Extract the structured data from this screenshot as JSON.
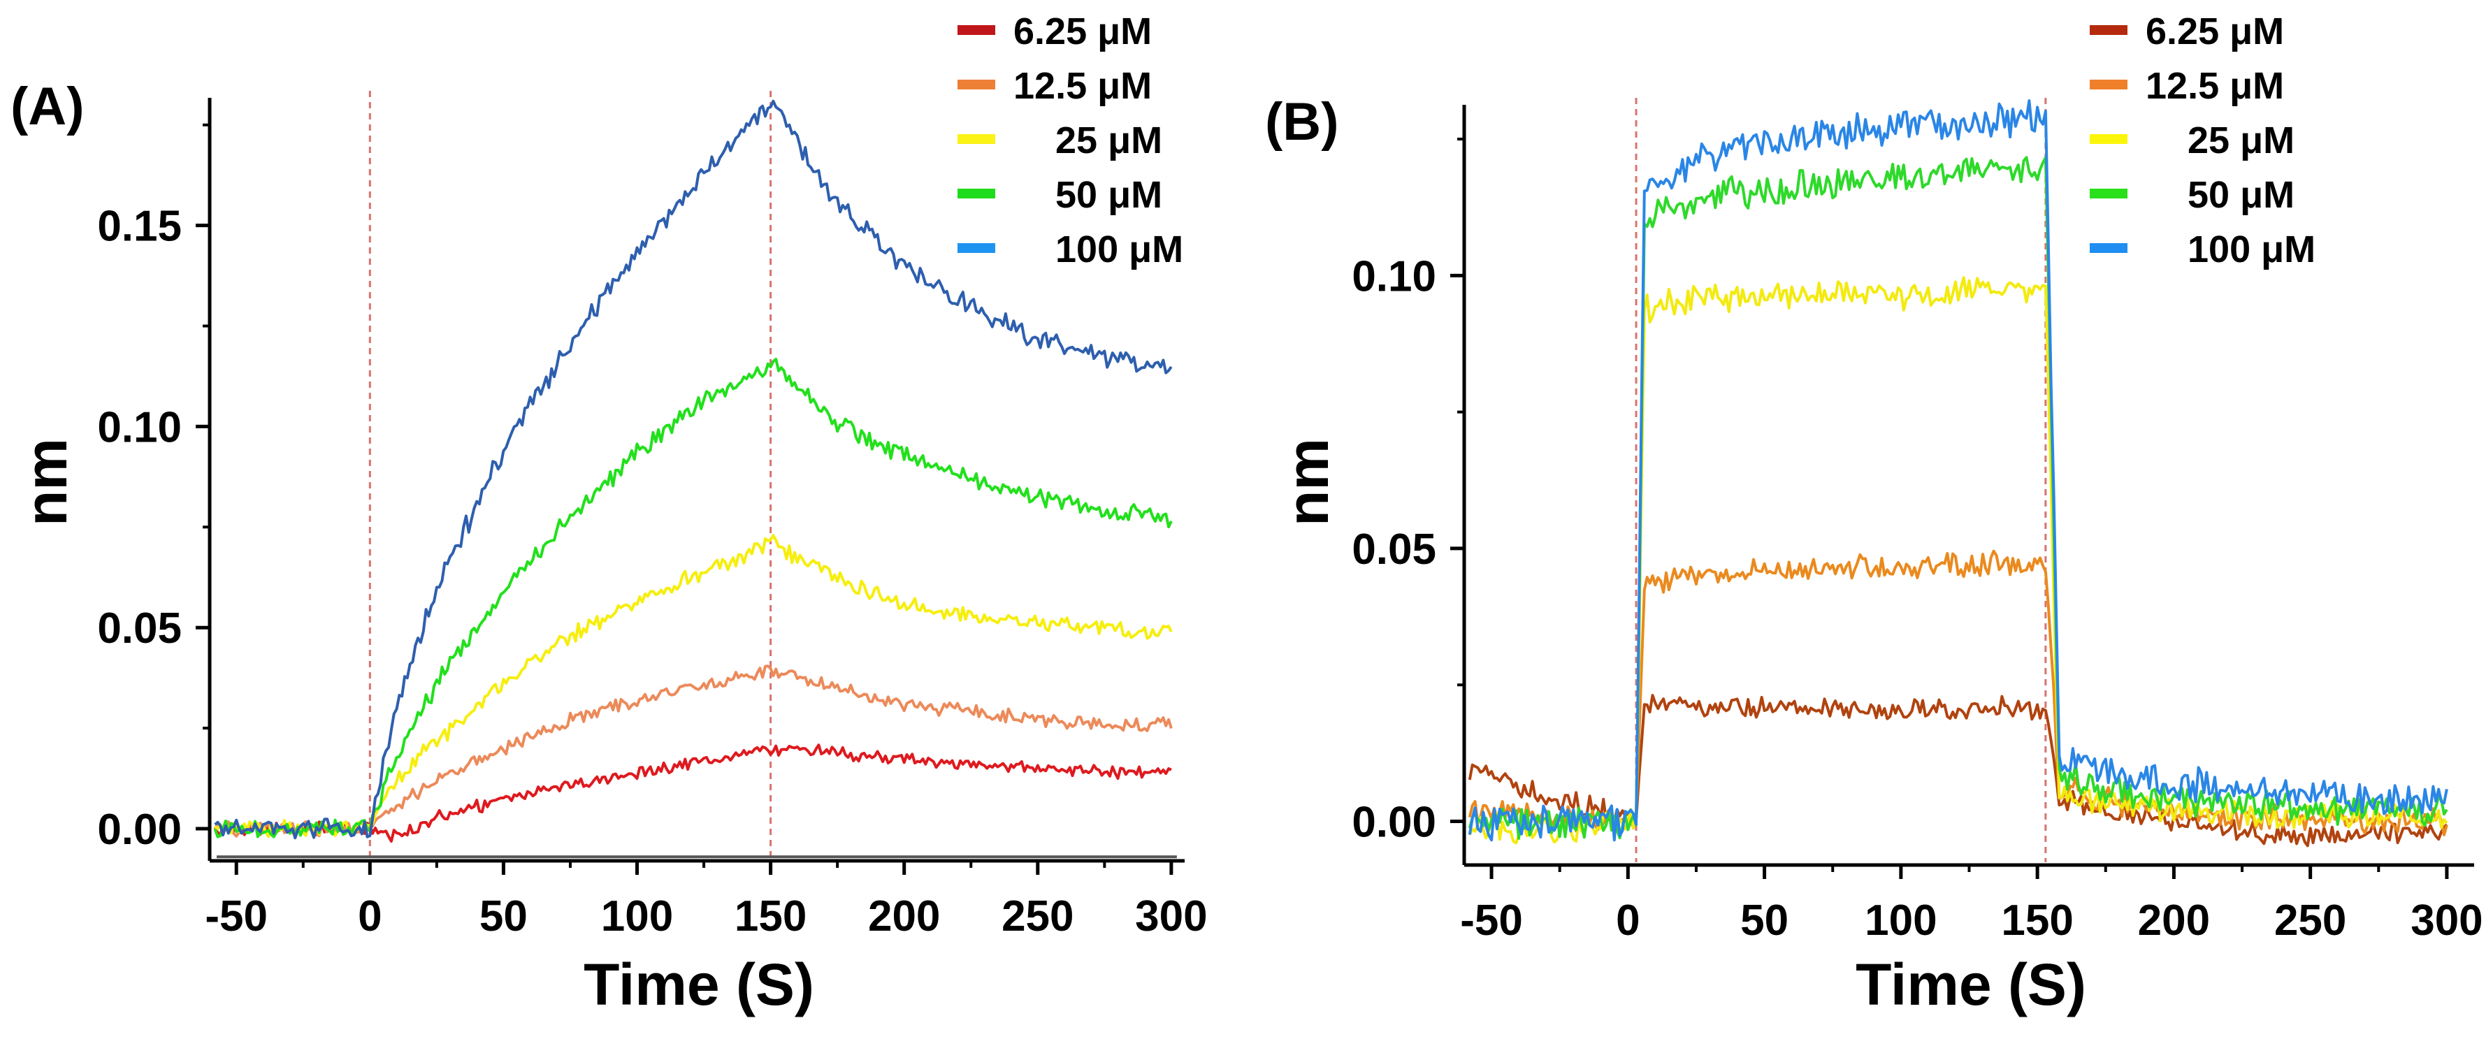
{
  "chart_data": [
    {
      "panel": "(A)",
      "type": "line",
      "xlabel": "Time (S)",
      "ylabel": "nm",
      "xlim": [
        -60,
        305
      ],
      "ylim": [
        -0.008,
        0.18
      ],
      "xticks": [
        -50,
        0,
        50,
        100,
        150,
        200,
        250,
        300
      ],
      "xtick_labels": [
        "-50",
        "0",
        "50",
        "100",
        "150",
        "200",
        "250",
        "300"
      ],
      "yticks": [
        0.0,
        0.05,
        0.1,
        0.15
      ],
      "ytick_labels": [
        "0.00",
        "0.05",
        "0.10",
        "0.15"
      ],
      "baseline_y": -0.007,
      "vlines": [
        0,
        150
      ],
      "legend": "top-right",
      "series": [
        {
          "name": "6.25 μM",
          "legend_color": "#c0161b",
          "line_color": "#de1a1f",
          "x": [
            -60,
            -50,
            -25,
            0,
            10,
            25,
            50,
            75,
            100,
            125,
            150,
            175,
            200,
            225,
            250,
            275,
            300
          ],
          "y": [
            0.0,
            0.0,
            0.0,
            0.0,
            -0.002,
            0.003,
            0.007,
            0.011,
            0.014,
            0.017,
            0.02,
            0.019,
            0.017,
            0.016,
            0.015,
            0.014,
            0.014
          ]
        },
        {
          "name": "12.5 μM",
          "legend_color": "#ee8036",
          "line_color": "#ec8a5a",
          "x": [
            -60,
            -50,
            -25,
            0,
            10,
            25,
            50,
            75,
            100,
            125,
            150,
            175,
            200,
            225,
            250,
            275,
            300
          ],
          "y": [
            0.0,
            0.0,
            0.0,
            0.0,
            0.006,
            0.012,
            0.02,
            0.027,
            0.032,
            0.036,
            0.039,
            0.035,
            0.031,
            0.029,
            0.027,
            0.026,
            0.026
          ]
        },
        {
          "name": "25 μM",
          "legend_color": "#fbf216",
          "line_color": "#f6ee0e",
          "x": [
            -60,
            -50,
            -25,
            0,
            10,
            25,
            50,
            75,
            100,
            125,
            150,
            175,
            200,
            225,
            250,
            275,
            300
          ],
          "y": [
            0.0,
            0.0,
            0.0,
            0.0,
            0.012,
            0.022,
            0.036,
            0.048,
            0.057,
            0.064,
            0.071,
            0.062,
            0.056,
            0.053,
            0.051,
            0.05,
            0.049
          ]
        },
        {
          "name": "50 μM",
          "legend_color": "#1edc1b",
          "line_color": "#22e01c",
          "x": [
            -60,
            -50,
            -25,
            0,
            10,
            25,
            50,
            75,
            100,
            125,
            150,
            175,
            200,
            225,
            250,
            275,
            300
          ],
          "y": [
            0.0,
            0.0,
            0.0,
            0.0,
            0.018,
            0.036,
            0.059,
            0.078,
            0.093,
            0.106,
            0.116,
            0.101,
            0.093,
            0.087,
            0.083,
            0.079,
            0.077
          ]
        },
        {
          "name": "100 μM",
          "legend_color": "#1f93f0",
          "line_color": "#2e5fae",
          "x": [
            -60,
            -50,
            -25,
            0,
            10,
            25,
            50,
            75,
            100,
            125,
            150,
            175,
            200,
            225,
            250,
            275,
            300
          ],
          "y": [
            0.0,
            0.0,
            0.0,
            0.0,
            0.03,
            0.06,
            0.094,
            0.121,
            0.143,
            0.163,
            0.181,
            0.155,
            0.14,
            0.13,
            0.122,
            0.117,
            0.114
          ]
        }
      ]
    },
    {
      "panel": "(B)",
      "type": "line",
      "xlabel": "Time (S)",
      "ylabel": "nm",
      "xlim": [
        -60,
        310
      ],
      "ylim": [
        -0.008,
        0.13
      ],
      "xticks": [
        -50,
        0,
        50,
        100,
        150,
        200,
        250,
        300
      ],
      "xtick_labels": [
        "-50",
        "0",
        "50",
        "100",
        "150",
        "200",
        "250",
        "300"
      ],
      "yticks": [
        0.0,
        0.05,
        0.1
      ],
      "ytick_labels": [
        "0.00",
        "0.05",
        "0.10"
      ],
      "vlines": [
        3,
        153
      ],
      "legend": "top-right",
      "series": [
        {
          "name": "6.25 μM",
          "legend_color": "#b52a0d",
          "line_color": "#b1430f",
          "x": [
            -60,
            -50,
            -25,
            0,
            3,
            6,
            25,
            50,
            75,
            100,
            125,
            150,
            153,
            158,
            175,
            200,
            225,
            250,
            275,
            300
          ],
          "y": [
            0.01,
            0.008,
            0.004,
            0.001,
            0.001,
            0.022,
            0.021,
            0.021,
            0.021,
            0.02,
            0.021,
            0.021,
            0.021,
            0.004,
            0.002,
            0.0,
            -0.002,
            -0.003,
            -0.002,
            -0.002
          ]
        },
        {
          "name": "12.5 μM",
          "legend_color": "#f07f2a",
          "line_color": "#ea8a1e",
          "x": [
            -60,
            -50,
            -25,
            0,
            3,
            6,
            25,
            50,
            75,
            100,
            125,
            150,
            153,
            158,
            175,
            200,
            225,
            250,
            275,
            300
          ],
          "y": [
            0.002,
            0.002,
            0.001,
            0.0,
            0.0,
            0.043,
            0.045,
            0.046,
            0.047,
            0.046,
            0.047,
            0.047,
            0.047,
            0.006,
            0.004,
            0.002,
            0.001,
            0.0,
            0.0,
            0.0
          ]
        },
        {
          "name": "25 μM",
          "legend_color": "#fbf50b",
          "line_color": "#f3ea10",
          "x": [
            -60,
            -50,
            -25,
            0,
            3,
            6,
            25,
            50,
            75,
            100,
            125,
            150,
            153,
            158,
            175,
            200,
            225,
            250,
            275,
            300
          ],
          "y": [
            0.0,
            -0.001,
            -0.002,
            0.0,
            0.0,
            0.094,
            0.096,
            0.096,
            0.097,
            0.096,
            0.097,
            0.098,
            0.098,
            0.005,
            0.003,
            0.002,
            0.001,
            0.001,
            0.001,
            0.001
          ]
        },
        {
          "name": "50 μM",
          "legend_color": "#2ae01a",
          "line_color": "#2ed92a",
          "x": [
            -60,
            -50,
            -25,
            0,
            3,
            6,
            25,
            50,
            75,
            100,
            125,
            150,
            153,
            158,
            175,
            200,
            225,
            250,
            275,
            300
          ],
          "y": [
            0.0,
            0.0,
            0.0,
            0.0,
            0.0,
            0.11,
            0.114,
            0.116,
            0.117,
            0.118,
            0.119,
            0.12,
            0.12,
            0.009,
            0.006,
            0.004,
            0.003,
            0.002,
            0.002,
            0.002
          ]
        },
        {
          "name": "100 μM",
          "legend_color": "#1f8ef0",
          "line_color": "#2a86e6",
          "x": [
            -60,
            -50,
            -25,
            0,
            3,
            6,
            25,
            50,
            75,
            100,
            125,
            150,
            153,
            158,
            175,
            200,
            225,
            250,
            275,
            300
          ],
          "y": [
            0.0,
            0.0,
            0.0,
            0.0,
            0.0,
            0.116,
            0.121,
            0.124,
            0.126,
            0.127,
            0.128,
            0.129,
            0.129,
            0.012,
            0.009,
            0.007,
            0.006,
            0.005,
            0.004,
            0.004
          ]
        }
      ]
    }
  ]
}
